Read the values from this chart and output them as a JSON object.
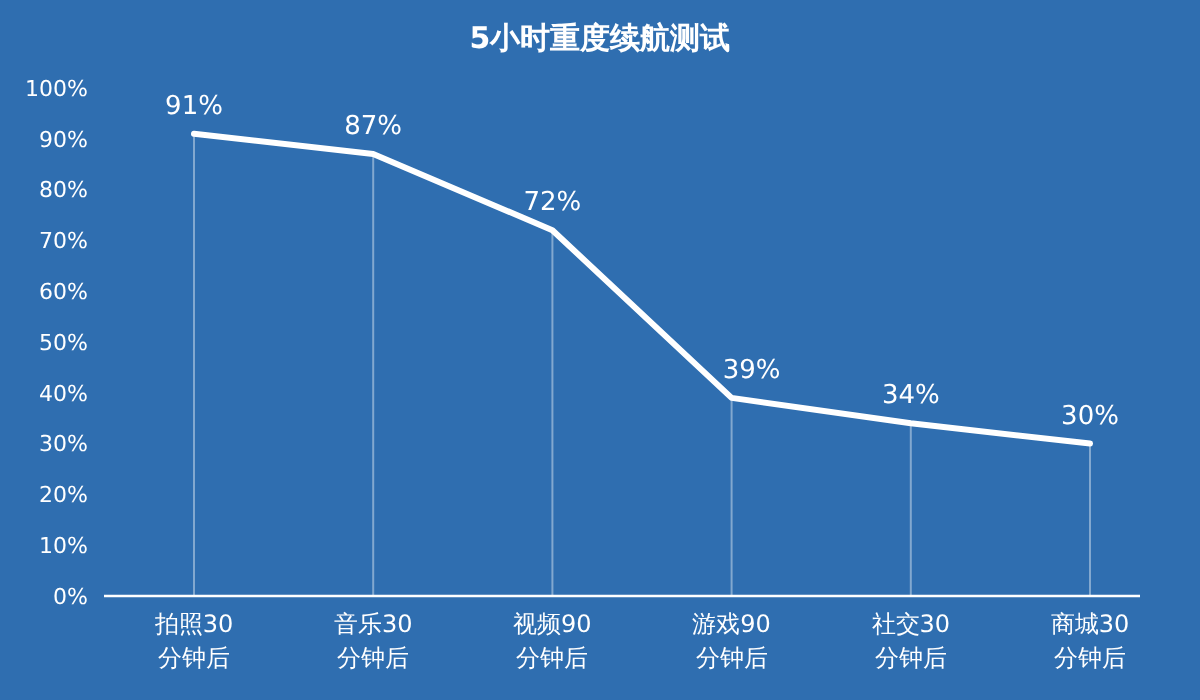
{
  "chart_data": {
    "type": "line",
    "title": "5小时重度续航测试",
    "categories": [
      "拍照30\n分钟后",
      "音乐30\n分钟后",
      "视频90\n分钟后",
      "游戏90\n分钟后",
      "社交30\n分钟后",
      "商城30\n分钟后"
    ],
    "series": [
      {
        "color": "#ffffff",
        "values": [
          91,
          87,
          72,
          39,
          34,
          30
        ]
      }
    ],
    "value_labels": [
      "91%",
      "87%",
      "72%",
      "39%",
      "34%",
      "30%"
    ],
    "ylim": [
      0,
      100
    ],
    "yticks": [
      {
        "value": 0,
        "label": "0%"
      },
      {
        "value": 10,
        "label": "10%"
      },
      {
        "value": 20,
        "label": "20%"
      },
      {
        "value": 30,
        "label": "30%"
      },
      {
        "value": 40,
        "label": "40%"
      },
      {
        "value": 50,
        "label": "50%"
      },
      {
        "value": 60,
        "label": "60%"
      },
      {
        "value": 70,
        "label": "70%"
      },
      {
        "value": 80,
        "label": "80%"
      },
      {
        "value": 90,
        "label": "90%"
      },
      {
        "value": 100,
        "label": "100%"
      }
    ],
    "grid": "x",
    "marker": "none",
    "line_style": "solid"
  }
}
